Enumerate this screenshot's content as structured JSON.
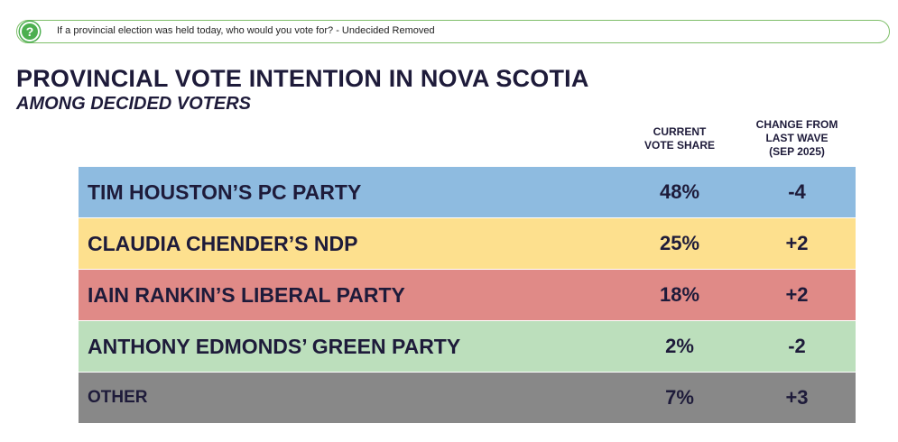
{
  "question": {
    "icon": "question-mark-icon",
    "icon_glyph": "?",
    "text": "If a provincial election was held today, who would you vote for? - Undecided Removed"
  },
  "chart_data": {
    "type": "table",
    "title": "PROVINCIAL VOTE INTENTION IN NOVA SCOTIA",
    "subtitle": "AMONG DECIDED VOTERS",
    "columns": {
      "share": "CURRENT\nVOTE SHARE",
      "change": "CHANGE FROM\nLAST WAVE\n(SEP 2025)"
    },
    "rows": [
      {
        "party": "TIM HOUSTON’S PC PARTY",
        "share": "48%",
        "change": "-4",
        "share_value": 48,
        "change_value": -4,
        "color": "#8ebbe0"
      },
      {
        "party": "CLAUDIA CHENDER’S NDP",
        "share": "25%",
        "change": "+2",
        "share_value": 25,
        "change_value": 2,
        "color": "#fde08e"
      },
      {
        "party": "IAIN RANKIN’S LIBERAL PARTY",
        "share": "18%",
        "change": "+2",
        "share_value": 18,
        "change_value": 2,
        "color": "#e08a87"
      },
      {
        "party": "ANTHONY EDMONDS’ GREEN PARTY",
        "share": "2%",
        "change": "-2",
        "share_value": 2,
        "change_value": -2,
        "color": "#bcdfbc"
      },
      {
        "party": "OTHER",
        "share": "7%",
        "change": "+3",
        "share_value": 7,
        "change_value": 3,
        "color": "#888888"
      }
    ]
  }
}
